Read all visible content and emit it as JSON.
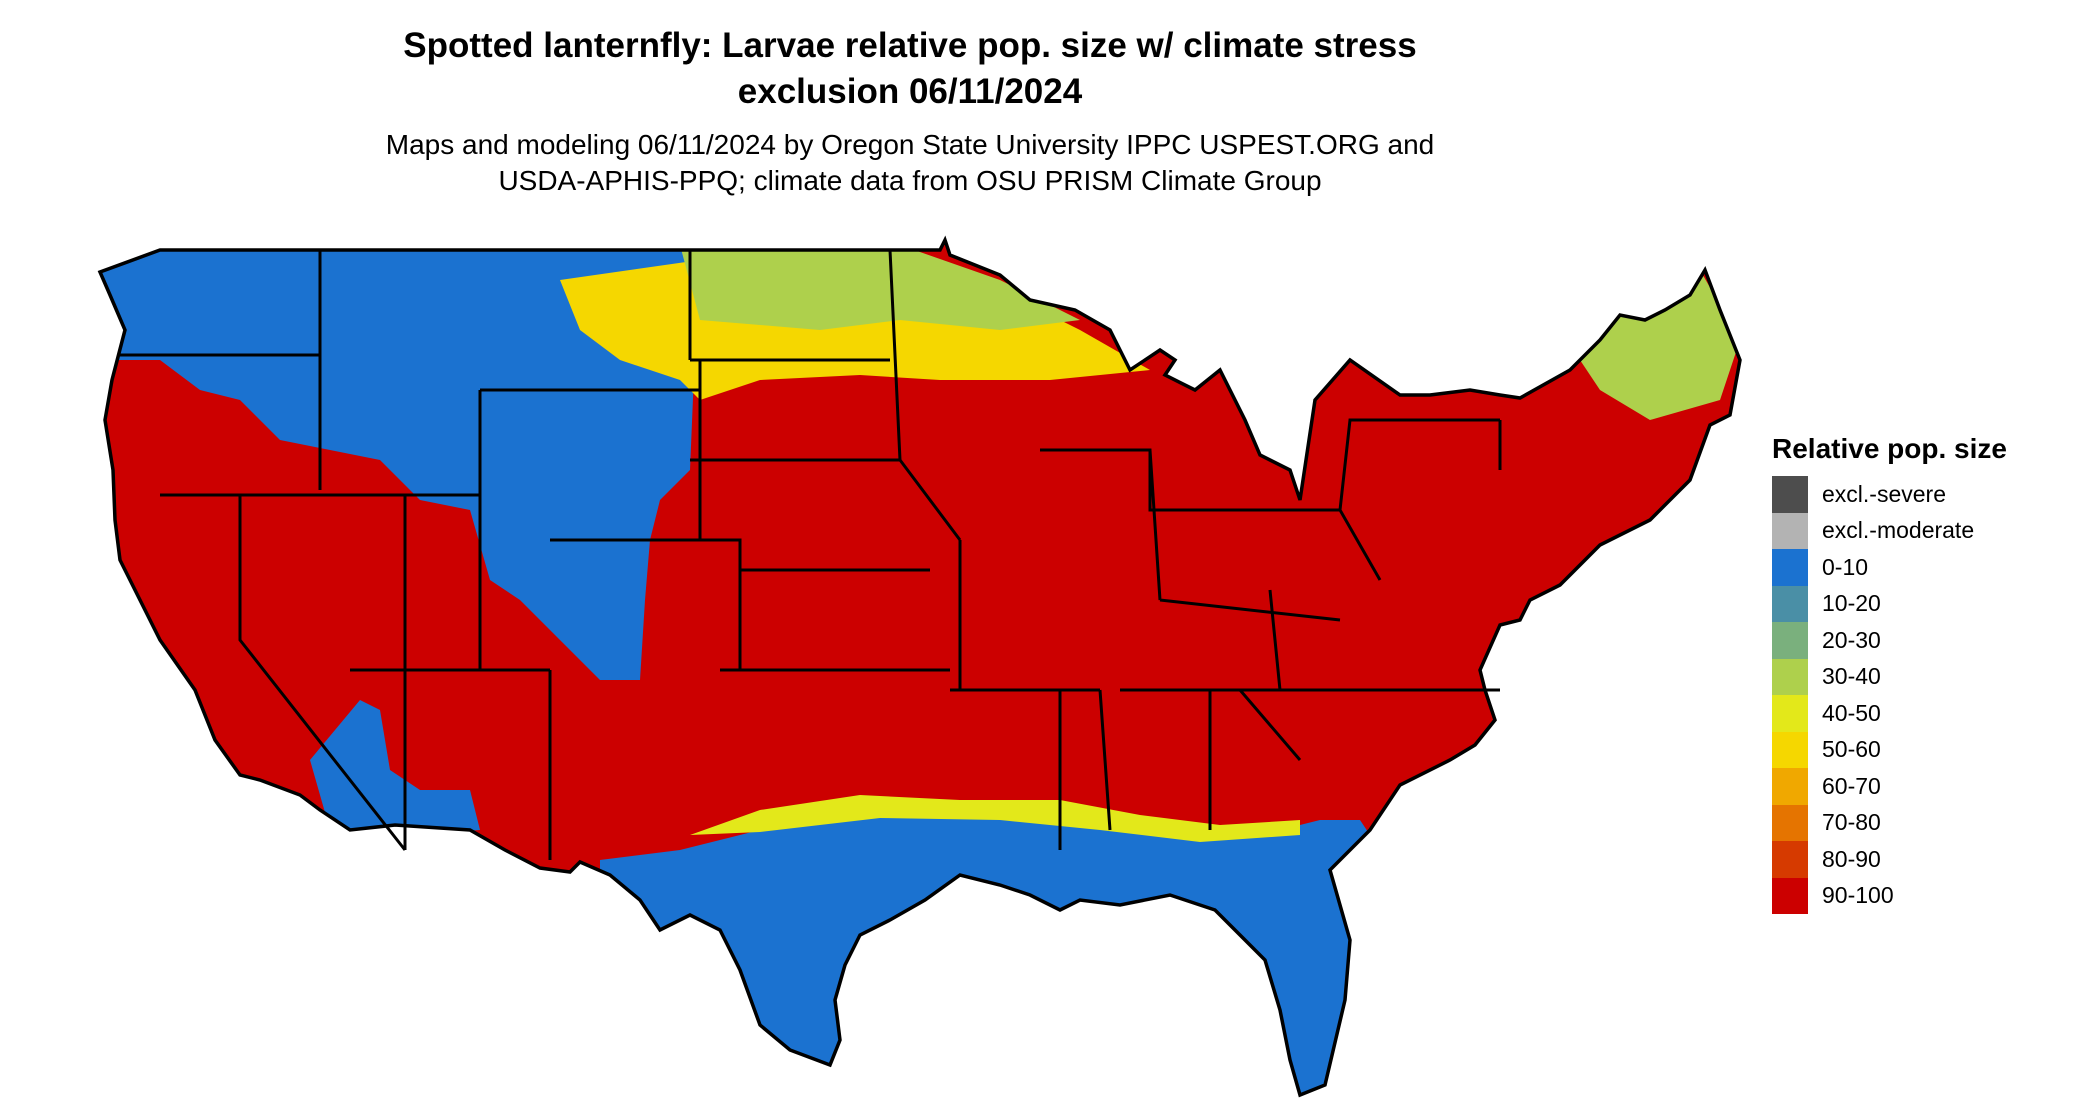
{
  "title_line1": "Spotted lanternfly: Larvae relative pop. size w/ climate stress",
  "title_line2": "exclusion 06/11/2024",
  "subtitle_line1": "Maps and modeling 06/11/2024 by Oregon State University IPPC USPEST.ORG and",
  "subtitle_line2": "USDA-APHIS-PPQ; climate data from OSU PRISM Climate Group",
  "legend": {
    "title": "Relative pop. size",
    "items": [
      {
        "label": "excl.-severe",
        "color": "#4d4d4d"
      },
      {
        "label": "excl.-moderate",
        "color": "#b3b3b3"
      },
      {
        "label": "0-10",
        "color": "#1b72d0"
      },
      {
        "label": "10-20",
        "color": "#4a8fa6"
      },
      {
        "label": "20-30",
        "color": "#7ab07d"
      },
      {
        "label": "30-40",
        "color": "#aed04c"
      },
      {
        "label": "40-50",
        "color": "#e3e81a"
      },
      {
        "label": "50-60",
        "color": "#f5d700"
      },
      {
        "label": "60-70",
        "color": "#f0a800"
      },
      {
        "label": "70-80",
        "color": "#e57400"
      },
      {
        "label": "80-90",
        "color": "#d63a00"
      },
      {
        "label": "90-100",
        "color": "#cc0000"
      }
    ]
  }
}
